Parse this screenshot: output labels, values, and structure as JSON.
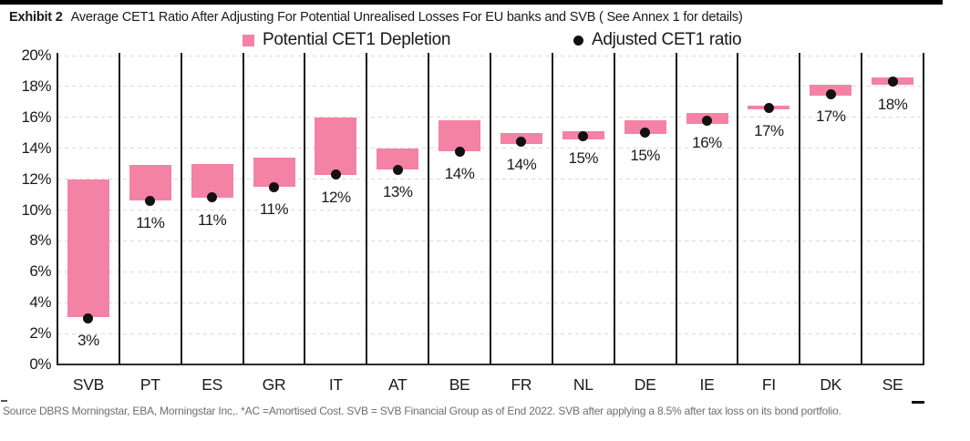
{
  "title": {
    "exhibit": "Exhibit 2",
    "text": "Average CET1 Ratio After Adjusting For Potential Unrealised Losses For EU banks and SVB ( See Annex 1 for details)"
  },
  "legend": [
    {
      "label": "Potential CET1 Depletion",
      "marker": "square",
      "color": "#F482A5"
    },
    {
      "label": "Adjusted CET1 ratio",
      "marker": "dot",
      "color": "#111111"
    }
  ],
  "source": "Source DBRS Morningstar, EBA,  Morningstar Inc,. *AC =Amortised Cost. SVB = SVB Financial Group as of End 2022. SVB after applying a 8.5% after tax loss on its bond portfolio.",
  "chart_data": {
    "type": "bar",
    "subtype": "floating-range-bars-with-points",
    "title": "Average CET1 Ratio After Adjusting For Potential Unrealised Losses For EU banks and SVB",
    "categories": [
      "SVB",
      "PT",
      "ES",
      "GR",
      "IT",
      "AT",
      "BE",
      "FR",
      "NL",
      "DE",
      "IE",
      "FI",
      "DK",
      "SE"
    ],
    "series": [
      {
        "name": "Potential CET1 Depletion",
        "bar_bottom_pct": [
          3.05,
          10.6,
          10.8,
          11.5,
          12.3,
          12.6,
          13.8,
          14.3,
          14.6,
          14.9,
          15.6,
          16.5,
          17.4,
          18.1
        ],
        "bar_top_pct": [
          12.0,
          12.9,
          13.0,
          13.4,
          16.0,
          14.0,
          15.8,
          15.0,
          15.1,
          15.8,
          16.3,
          16.75,
          18.1,
          18.6
        ]
      },
      {
        "name": "Adjusted CET1 ratio",
        "values_pct": [
          3.0,
          10.6,
          10.8,
          11.5,
          12.3,
          12.6,
          13.8,
          14.4,
          14.8,
          15.0,
          15.8,
          16.6,
          17.5,
          18.3
        ]
      }
    ],
    "point_labels": [
      "3%",
      "11%",
      "11%",
      "11%",
      "12%",
      "13%",
      "14%",
      "14%",
      "15%",
      "15%",
      "16%",
      "17%",
      "17%",
      "18%"
    ],
    "y_axis": {
      "min": 0,
      "max": 20,
      "step": 2,
      "ticks": [
        "0%",
        "2%",
        "4%",
        "6%",
        "8%",
        "10%",
        "12%",
        "14%",
        "16%",
        "18%",
        "20%"
      ]
    },
    "grid": "horizontal dashed, solid vertical column dividers, legend top center",
    "colors": {
      "bar": "#F482A5",
      "point": "#111111",
      "gridline": "#d9d9d9",
      "axis": "#2b2b2b"
    }
  }
}
